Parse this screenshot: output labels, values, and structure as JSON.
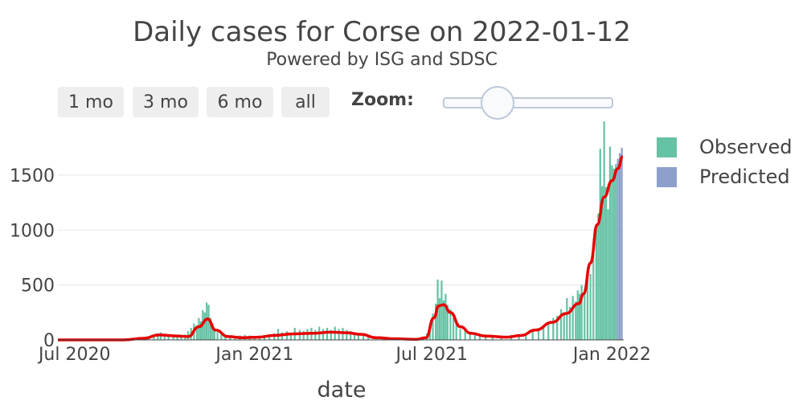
{
  "header": {
    "title": "Daily cases for Corse on 2022-01-12",
    "subtitle": "Powered by ISG and SDSC"
  },
  "range_selector": {
    "buttons": [
      "1 mo",
      "3 mo",
      "6 mo",
      "all"
    ],
    "zoom_label": "Zoom:"
  },
  "legend": {
    "observed": "Observed",
    "predicted": "Predicted"
  },
  "colors": {
    "observed": "#66c2a5",
    "predicted": "#8da0cb",
    "trend": "#e60000",
    "grid": "#e6e6e6"
  },
  "chart_data": {
    "type": "bar",
    "title": "Daily cases for Corse on 2022-01-12",
    "subtitle": "Powered by ISG and SDSC",
    "xlabel": "date",
    "ylabel": "",
    "x_range": [
      "2020-06-14",
      "2022-01-13"
    ],
    "ylim": [
      0,
      2000
    ],
    "y_ticks": [
      0,
      500,
      1000,
      1500
    ],
    "x_ticks": [
      {
        "date": "2020-07-01",
        "label": "Jul 2020"
      },
      {
        "date": "2021-01-01",
        "label": "Jan 2021"
      },
      {
        "date": "2021-07-01",
        "label": "Jul 2021"
      },
      {
        "date": "2022-01-01",
        "label": "Jan 2022"
      }
    ],
    "grid": true,
    "legend_position": "top-right",
    "series": [
      {
        "name": "Observed",
        "type": "bar",
        "points": [
          [
            "2020-06-20",
            0
          ],
          [
            "2020-07-01",
            0
          ],
          [
            "2020-07-15",
            0
          ],
          [
            "2020-08-01",
            0
          ],
          [
            "2020-08-15",
            0
          ],
          [
            "2020-09-01",
            5
          ],
          [
            "2020-09-08",
            15
          ],
          [
            "2020-09-15",
            30
          ],
          [
            "2020-09-20",
            40
          ],
          [
            "2020-09-24",
            60
          ],
          [
            "2020-09-27",
            70
          ],
          [
            "2020-10-01",
            55
          ],
          [
            "2020-10-05",
            45
          ],
          [
            "2020-10-10",
            40
          ],
          [
            "2020-10-14",
            35
          ],
          [
            "2020-10-18",
            30
          ],
          [
            "2020-10-22",
            50
          ],
          [
            "2020-10-25",
            80
          ],
          [
            "2020-10-28",
            110
          ],
          [
            "2020-10-31",
            150
          ],
          [
            "2020-11-03",
            130
          ],
          [
            "2020-11-05",
            200
          ],
          [
            "2020-11-07",
            170
          ],
          [
            "2020-11-09",
            270
          ],
          [
            "2020-11-11",
            250
          ],
          [
            "2020-11-13",
            340
          ],
          [
            "2020-11-15",
            320
          ],
          [
            "2020-11-17",
            200
          ],
          [
            "2020-11-19",
            150
          ],
          [
            "2020-11-21",
            100
          ],
          [
            "2020-11-24",
            70
          ],
          [
            "2020-11-28",
            50
          ],
          [
            "2020-12-02",
            40
          ],
          [
            "2020-12-07",
            35
          ],
          [
            "2020-12-12",
            30
          ],
          [
            "2020-12-17",
            40
          ],
          [
            "2020-12-22",
            45
          ],
          [
            "2020-12-27",
            40
          ],
          [
            "2021-01-01",
            35
          ],
          [
            "2021-01-06",
            40
          ],
          [
            "2021-01-11",
            45
          ],
          [
            "2021-01-16",
            50
          ],
          [
            "2021-01-21",
            60
          ],
          [
            "2021-01-25",
            100
          ],
          [
            "2021-01-29",
            70
          ],
          [
            "2021-02-03",
            80
          ],
          [
            "2021-02-07",
            60
          ],
          [
            "2021-02-11",
            110
          ],
          [
            "2021-02-16",
            90
          ],
          [
            "2021-02-20",
            80
          ],
          [
            "2021-02-24",
            100
          ],
          [
            "2021-02-28",
            110
          ],
          [
            "2021-03-04",
            90
          ],
          [
            "2021-03-08",
            120
          ],
          [
            "2021-03-12",
            100
          ],
          [
            "2021-03-16",
            110
          ],
          [
            "2021-03-20",
            90
          ],
          [
            "2021-03-24",
            120
          ],
          [
            "2021-03-28",
            100
          ],
          [
            "2021-04-01",
            110
          ],
          [
            "2021-04-05",
            90
          ],
          [
            "2021-04-09",
            80
          ],
          [
            "2021-04-13",
            70
          ],
          [
            "2021-04-17",
            50
          ],
          [
            "2021-04-22",
            40
          ],
          [
            "2021-04-27",
            30
          ],
          [
            "2021-05-05",
            20
          ],
          [
            "2021-05-15",
            15
          ],
          [
            "2021-05-25",
            10
          ],
          [
            "2021-06-05",
            10
          ],
          [
            "2021-06-15",
            10
          ],
          [
            "2021-06-22",
            20
          ],
          [
            "2021-06-26",
            60
          ],
          [
            "2021-06-29",
            130
          ],
          [
            "2021-07-02",
            240
          ],
          [
            "2021-07-05",
            330
          ],
          [
            "2021-07-07",
            550
          ],
          [
            "2021-07-09",
            380
          ],
          [
            "2021-07-11",
            540
          ],
          [
            "2021-07-13",
            360
          ],
          [
            "2021-07-15",
            420
          ],
          [
            "2021-07-17",
            320
          ],
          [
            "2021-07-20",
            280
          ],
          [
            "2021-07-23",
            200
          ],
          [
            "2021-07-26",
            150
          ],
          [
            "2021-07-30",
            100
          ],
          [
            "2021-08-04",
            80
          ],
          [
            "2021-08-09",
            60
          ],
          [
            "2021-08-14",
            50
          ],
          [
            "2021-08-19",
            45
          ],
          [
            "2021-08-25",
            40
          ],
          [
            "2021-09-01",
            40
          ],
          [
            "2021-09-10",
            40
          ],
          [
            "2021-09-20",
            45
          ],
          [
            "2021-09-28",
            50
          ],
          [
            "2021-10-05",
            60
          ],
          [
            "2021-10-12",
            80
          ],
          [
            "2021-10-18",
            100
          ],
          [
            "2021-10-23",
            130
          ],
          [
            "2021-10-28",
            160
          ],
          [
            "2021-11-02",
            200
          ],
          [
            "2021-11-06",
            220
          ],
          [
            "2021-11-10",
            280
          ],
          [
            "2021-11-13",
            250
          ],
          [
            "2021-11-16",
            380
          ],
          [
            "2021-11-19",
            300
          ],
          [
            "2021-11-22",
            400
          ],
          [
            "2021-11-25",
            350
          ],
          [
            "2021-11-27",
            450
          ],
          [
            "2021-11-29",
            420
          ],
          [
            "2021-12-01",
            500
          ],
          [
            "2021-12-04",
            440
          ],
          [
            "2021-12-07",
            560
          ],
          [
            "2021-12-10",
            600
          ],
          [
            "2021-12-13",
            780
          ],
          [
            "2021-12-16",
            1000
          ],
          [
            "2021-12-18",
            1150
          ],
          [
            "2021-12-20",
            1740
          ],
          [
            "2021-12-22",
            1400
          ],
          [
            "2021-12-24",
            1990
          ],
          [
            "2021-12-26",
            1390
          ],
          [
            "2021-12-28",
            1190
          ],
          [
            "2021-12-30",
            1760
          ],
          [
            "2022-01-01",
            1590
          ],
          [
            "2022-01-03",
            1560
          ],
          [
            "2022-01-05",
            1600
          ]
        ]
      },
      {
        "name": "Predicted",
        "type": "bar",
        "points": [
          [
            "2022-01-07",
            1650
          ],
          [
            "2022-01-09",
            1700
          ],
          [
            "2022-01-11",
            1750
          ]
        ]
      },
      {
        "name": "",
        "type": "line",
        "points": [
          [
            "2020-06-14",
            0
          ],
          [
            "2020-08-20",
            0
          ],
          [
            "2020-09-10",
            15
          ],
          [
            "2020-09-25",
            45
          ],
          [
            "2020-10-15",
            35
          ],
          [
            "2020-10-25",
            30
          ],
          [
            "2020-11-05",
            120
          ],
          [
            "2020-11-14",
            190
          ],
          [
            "2020-11-22",
            90
          ],
          [
            "2020-12-05",
            30
          ],
          [
            "2020-12-20",
            20
          ],
          [
            "2021-01-05",
            25
          ],
          [
            "2021-01-20",
            40
          ],
          [
            "2021-02-10",
            55
          ],
          [
            "2021-03-01",
            60
          ],
          [
            "2021-03-20",
            70
          ],
          [
            "2021-04-05",
            65
          ],
          [
            "2021-04-20",
            50
          ],
          [
            "2021-05-05",
            20
          ],
          [
            "2021-05-25",
            10
          ],
          [
            "2021-06-15",
            5
          ],
          [
            "2021-06-25",
            20
          ],
          [
            "2021-07-03",
            200
          ],
          [
            "2021-07-08",
            310
          ],
          [
            "2021-07-13",
            320
          ],
          [
            "2021-07-20",
            250
          ],
          [
            "2021-07-30",
            120
          ],
          [
            "2021-08-10",
            60
          ],
          [
            "2021-08-25",
            35
          ],
          [
            "2021-09-15",
            25
          ],
          [
            "2021-09-30",
            40
          ],
          [
            "2021-10-15",
            90
          ],
          [
            "2021-11-01",
            160
          ],
          [
            "2021-11-15",
            240
          ],
          [
            "2021-11-28",
            330
          ],
          [
            "2021-12-03",
            420
          ],
          [
            "2021-12-10",
            700
          ],
          [
            "2021-12-17",
            1050
          ],
          [
            "2021-12-24",
            1300
          ],
          [
            "2022-01-01",
            1450
          ],
          [
            "2022-01-07",
            1560
          ],
          [
            "2022-01-12",
            1670
          ]
        ]
      }
    ]
  }
}
